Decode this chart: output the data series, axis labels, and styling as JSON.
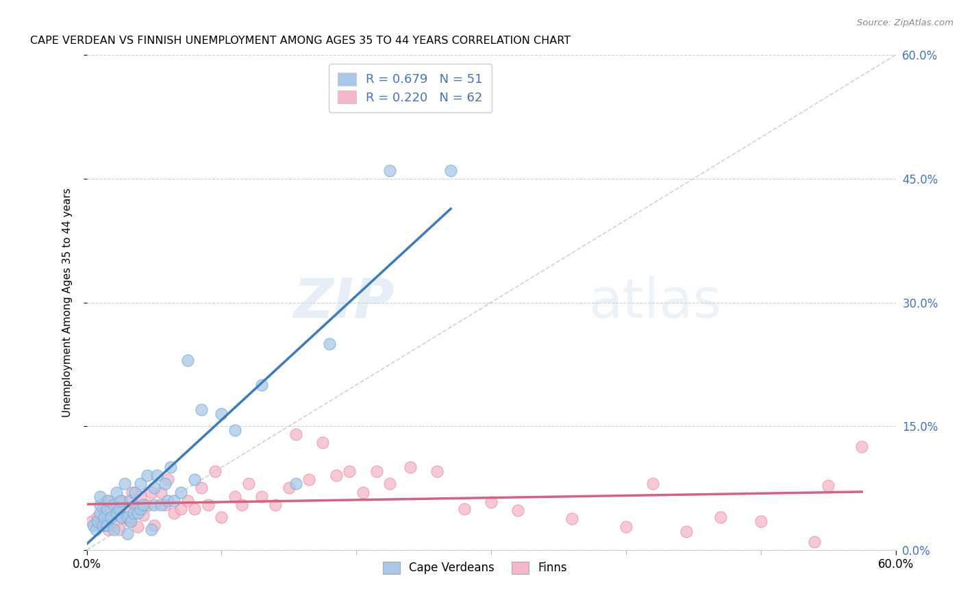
{
  "title": "CAPE VERDEAN VS FINNISH UNEMPLOYMENT AMONG AGES 35 TO 44 YEARS CORRELATION CHART",
  "source": "Source: ZipAtlas.com",
  "ylabel": "Unemployment Among Ages 35 to 44 years",
  "xlim": [
    0.0,
    0.6
  ],
  "ylim": [
    0.0,
    0.6
  ],
  "r1": 0.679,
  "n1": 51,
  "r2": 0.22,
  "n2": 62,
  "color_blue_fill": "#a8c8e8",
  "color_blue_edge": "#6aaad4",
  "color_blue_line": "#3a7abf",
  "color_pink_fill": "#f4b8c8",
  "color_pink_edge": "#e88aa0",
  "color_pink_line": "#d96080",
  "color_diag": "#b8c8d8",
  "watermark_zip": "ZIP",
  "watermark_atlas": "atlas",
  "blue_x": [
    0.005,
    0.007,
    0.008,
    0.01,
    0.01,
    0.01,
    0.012,
    0.013,
    0.015,
    0.015,
    0.016,
    0.018,
    0.02,
    0.02,
    0.022,
    0.022,
    0.024,
    0.025,
    0.026,
    0.028,
    0.03,
    0.03,
    0.032,
    0.033,
    0.035,
    0.036,
    0.038,
    0.04,
    0.04,
    0.042,
    0.045,
    0.048,
    0.05,
    0.05,
    0.052,
    0.055,
    0.058,
    0.06,
    0.062,
    0.065,
    0.07,
    0.075,
    0.08,
    0.085,
    0.1,
    0.11,
    0.13,
    0.155,
    0.18,
    0.225,
    0.27
  ],
  "blue_y": [
    0.03,
    0.025,
    0.035,
    0.045,
    0.055,
    0.065,
    0.03,
    0.04,
    0.03,
    0.05,
    0.06,
    0.04,
    0.025,
    0.055,
    0.045,
    0.07,
    0.05,
    0.06,
    0.04,
    0.08,
    0.02,
    0.04,
    0.06,
    0.035,
    0.045,
    0.07,
    0.045,
    0.05,
    0.08,
    0.055,
    0.09,
    0.025,
    0.055,
    0.075,
    0.09,
    0.055,
    0.08,
    0.06,
    0.1,
    0.06,
    0.07,
    0.23,
    0.085,
    0.17,
    0.165,
    0.145,
    0.2,
    0.08,
    0.25,
    0.46,
    0.46
  ],
  "pink_x": [
    0.004,
    0.008,
    0.01,
    0.012,
    0.014,
    0.015,
    0.016,
    0.018,
    0.02,
    0.022,
    0.024,
    0.026,
    0.028,
    0.03,
    0.032,
    0.034,
    0.036,
    0.038,
    0.04,
    0.042,
    0.045,
    0.048,
    0.05,
    0.055,
    0.058,
    0.06,
    0.065,
    0.07,
    0.075,
    0.08,
    0.085,
    0.09,
    0.095,
    0.1,
    0.11,
    0.115,
    0.12,
    0.13,
    0.14,
    0.15,
    0.155,
    0.165,
    0.175,
    0.185,
    0.195,
    0.205,
    0.215,
    0.225,
    0.24,
    0.26,
    0.28,
    0.3,
    0.32,
    0.36,
    0.4,
    0.42,
    0.445,
    0.47,
    0.5,
    0.54,
    0.55,
    0.575
  ],
  "pink_y": [
    0.035,
    0.04,
    0.03,
    0.05,
    0.035,
    0.06,
    0.025,
    0.04,
    0.03,
    0.05,
    0.025,
    0.06,
    0.038,
    0.045,
    0.035,
    0.07,
    0.055,
    0.028,
    0.065,
    0.042,
    0.055,
    0.07,
    0.03,
    0.07,
    0.055,
    0.085,
    0.045,
    0.05,
    0.06,
    0.05,
    0.075,
    0.055,
    0.095,
    0.04,
    0.065,
    0.055,
    0.08,
    0.065,
    0.055,
    0.075,
    0.14,
    0.085,
    0.13,
    0.09,
    0.095,
    0.07,
    0.095,
    0.08,
    0.1,
    0.095,
    0.05,
    0.058,
    0.048,
    0.038,
    0.028,
    0.08,
    0.022,
    0.04,
    0.035,
    0.01,
    0.078,
    0.125
  ]
}
